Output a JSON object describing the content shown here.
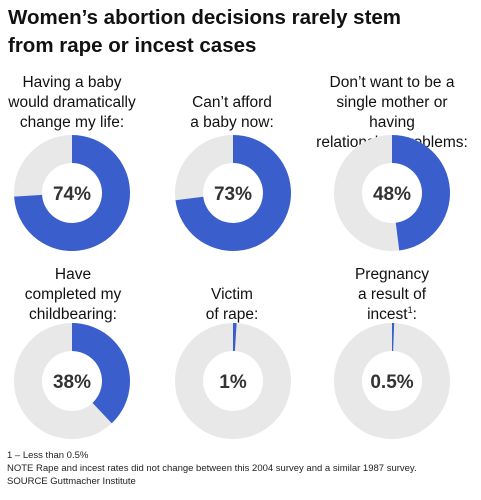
{
  "title": "Women’s abortion decisions rarely stem\nfrom rape or incest cases",
  "colors": {
    "filled": "#3a5fcd",
    "track": "#e8e8e8",
    "text": "#333333"
  },
  "chart_data": {
    "type": "pie",
    "title": "Women’s abortion decisions rarely stem from rape or incest cases",
    "items": [
      {
        "label": "Having a baby\nwould dramatically\nchange my life:",
        "value": 74,
        "display": "74%"
      },
      {
        "label": "Can’t afford\na baby now:",
        "value": 73,
        "display": "73%"
      },
      {
        "label": "Don’t want to be a\nsingle mother or having\nrelationship problems:",
        "value": 48,
        "display": "48%"
      },
      {
        "label": "Have\ncompleted my\nchildbearing:",
        "value": 38,
        "display": "38%"
      },
      {
        "label": "Victim\nof rape:",
        "value": 1,
        "display": "1%"
      },
      {
        "label": "Pregnancy\na result of\nincest",
        "label_sup": "1",
        "label_suffix": ":",
        "value": 0.5,
        "display": "0.5%"
      }
    ]
  },
  "footer": {
    "footnote": "1 – Less than 0.5%",
    "note": "NOTE Rape and incest rates did not change between this 2004 survey and a similar 1987 survey.",
    "source": "SOURCE Guttmacher Institute"
  }
}
